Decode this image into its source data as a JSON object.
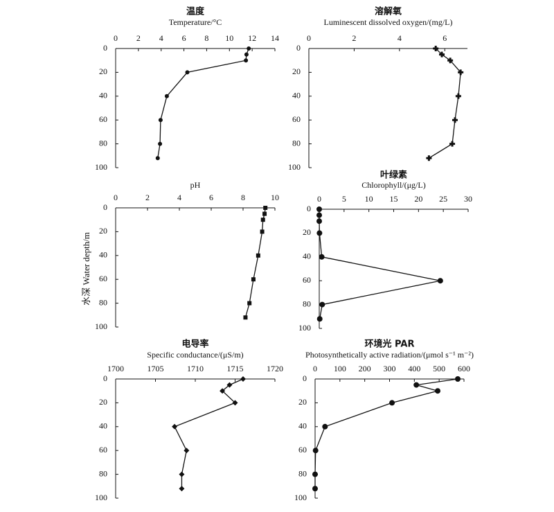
{
  "y_label": "水深 Water depth/m",
  "chart_data": [
    {
      "type": "line",
      "title": "温度",
      "xlabel": "Temperature/°C",
      "marker": "circle",
      "x": [
        11.7,
        11.5,
        11.45,
        6.3,
        4.5,
        3.95,
        3.9,
        3.7
      ],
      "y": [
        0,
        5,
        10,
        20,
        40,
        60,
        80,
        92
      ],
      "xlim": [
        0,
        14
      ],
      "xticks": [
        0,
        2,
        4,
        6,
        8,
        10,
        12,
        14
      ],
      "ylim": [
        0,
        100
      ],
      "yticks": [
        0,
        20,
        40,
        60,
        80,
        100
      ],
      "y_reversed": true,
      "color": "#111111"
    },
    {
      "type": "line",
      "title": "溶解氧",
      "xlabel": "Luminescent dissolved oxygen/(mg/L)",
      "marker": "plus",
      "x": [
        5.6,
        5.87,
        6.24,
        6.7,
        6.6,
        6.45,
        6.33,
        5.3
      ],
      "y": [
        0,
        5,
        10,
        20,
        40,
        60,
        80,
        92
      ],
      "xlim": [
        0,
        7
      ],
      "xticks": [
        0,
        2,
        4,
        6
      ],
      "ylim": [
        0,
        100
      ],
      "yticks": [
        0,
        20,
        40,
        60,
        80,
        100
      ],
      "y_reversed": true,
      "color": "#111111"
    },
    {
      "type": "line",
      "xlabel": "pH",
      "marker": "square",
      "x": [
        9.4,
        9.35,
        9.25,
        9.2,
        8.95,
        8.65,
        8.4,
        8.15
      ],
      "y": [
        0,
        5,
        10,
        20,
        40,
        60,
        80,
        92
      ],
      "xlim": [
        0,
        10
      ],
      "xticks": [
        0,
        2,
        4,
        6,
        8,
        10
      ],
      "ylim": [
        0,
        100
      ],
      "yticks": [
        0,
        20,
        40,
        60,
        80,
        100
      ],
      "y_reversed": true,
      "color": "#111111"
    },
    {
      "type": "line",
      "title": "叶绿素",
      "xlabel": "Chlorophyll/(μg/L)",
      "marker": "circle-large",
      "x": [
        0,
        0,
        0,
        0.05,
        0.5,
        24.4,
        0.6,
        0.1
      ],
      "y": [
        0,
        5,
        10,
        20,
        40,
        60,
        80,
        92
      ],
      "xlim": [
        0,
        30
      ],
      "xticks": [
        0,
        5,
        10,
        15,
        20,
        25,
        30
      ],
      "ylim": [
        0,
        100
      ],
      "yticks": [
        0,
        20,
        40,
        60,
        80,
        100
      ],
      "y_reversed": true,
      "color": "#111111"
    },
    {
      "type": "line",
      "title": "电导率",
      "xlabel": "Specific conductance/(μS/m)",
      "marker": "diamond",
      "x": [
        1716,
        1714.3,
        1713.4,
        1715,
        1707.4,
        1708.9,
        1708.3,
        1708.3
      ],
      "y": [
        0,
        5,
        10,
        20,
        40,
        60,
        80,
        92
      ],
      "xlim": [
        1700,
        1720
      ],
      "xticks": [
        1700,
        1705,
        1710,
        1715,
        1720
      ],
      "ylim": [
        0,
        100
      ],
      "yticks": [
        0,
        20,
        40,
        60,
        80,
        100
      ],
      "y_reversed": true,
      "color": "#111111"
    },
    {
      "type": "line",
      "title": "环境光 PAR",
      "xlabel": "Photosynthetically active radiation/(μmol s⁻¹ m⁻²)",
      "marker": "circle-large",
      "x": [
        575,
        408,
        494,
        310,
        40,
        2,
        0,
        0
      ],
      "y": [
        0,
        5,
        10,
        20,
        40,
        60,
        80,
        92
      ],
      "xlim": [
        0,
        600
      ],
      "xticks": [
        0,
        100,
        200,
        300,
        400,
        500,
        600
      ],
      "ylim": [
        0,
        100
      ],
      "yticks": [
        0,
        20,
        40,
        60,
        80,
        100
      ],
      "y_reversed": true,
      "color": "#111111"
    }
  ]
}
